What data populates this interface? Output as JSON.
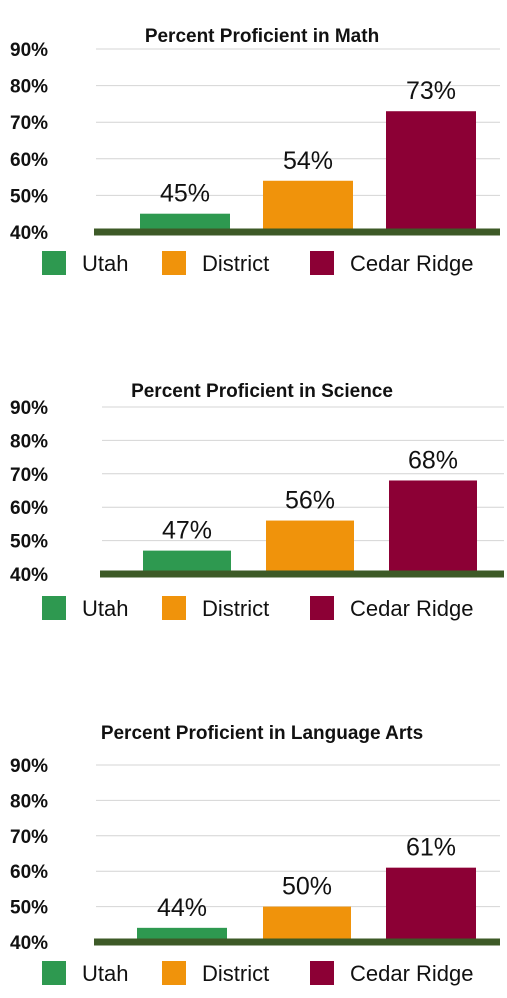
{
  "colors": {
    "Utah": "#2e9950",
    "District": "#f0930b",
    "Cedar Ridge": "#8c0035",
    "baseline": "#3d5a27"
  },
  "chart_data": [
    {
      "type": "bar",
      "title": "Percent Proficient in Math",
      "categories": [
        "Utah",
        "District",
        "Cedar Ridge"
      ],
      "values": [
        45,
        54,
        73
      ],
      "value_labels": [
        "45%",
        "54%",
        "73%"
      ],
      "ylim": [
        40,
        90
      ],
      "yticks": [
        "90%",
        "80%",
        "70%",
        "60%",
        "50%",
        "40%"
      ],
      "legend": [
        "Utah",
        "District",
        "Cedar Ridge"
      ],
      "legend_position": "bottom",
      "grid": true
    },
    {
      "type": "bar",
      "title": "Percent Proficient in Science",
      "categories": [
        "Utah",
        "District",
        "Cedar Ridge"
      ],
      "values": [
        47,
        56,
        68
      ],
      "value_labels": [
        "47%",
        "56%",
        "68%"
      ],
      "ylim": [
        40,
        90
      ],
      "yticks": [
        "90%",
        "80%",
        "70%",
        "60%",
        "50%",
        "40%"
      ],
      "legend": [
        "Utah",
        "District",
        "Cedar Ridge"
      ],
      "legend_position": "bottom",
      "grid": true
    },
    {
      "type": "bar",
      "title": "Percent Proficient in Language Arts",
      "categories": [
        "Utah",
        "District",
        "Cedar Ridge"
      ],
      "values": [
        44,
        50,
        61
      ],
      "value_labels": [
        "44%",
        "50%",
        "61%"
      ],
      "ylim": [
        40,
        90
      ],
      "yticks": [
        "90%",
        "80%",
        "70%",
        "60%",
        "50%",
        "40%"
      ],
      "legend": [
        "Utah",
        "District",
        "Cedar Ridge"
      ],
      "legend_position": "bottom",
      "grid": true
    }
  ]
}
